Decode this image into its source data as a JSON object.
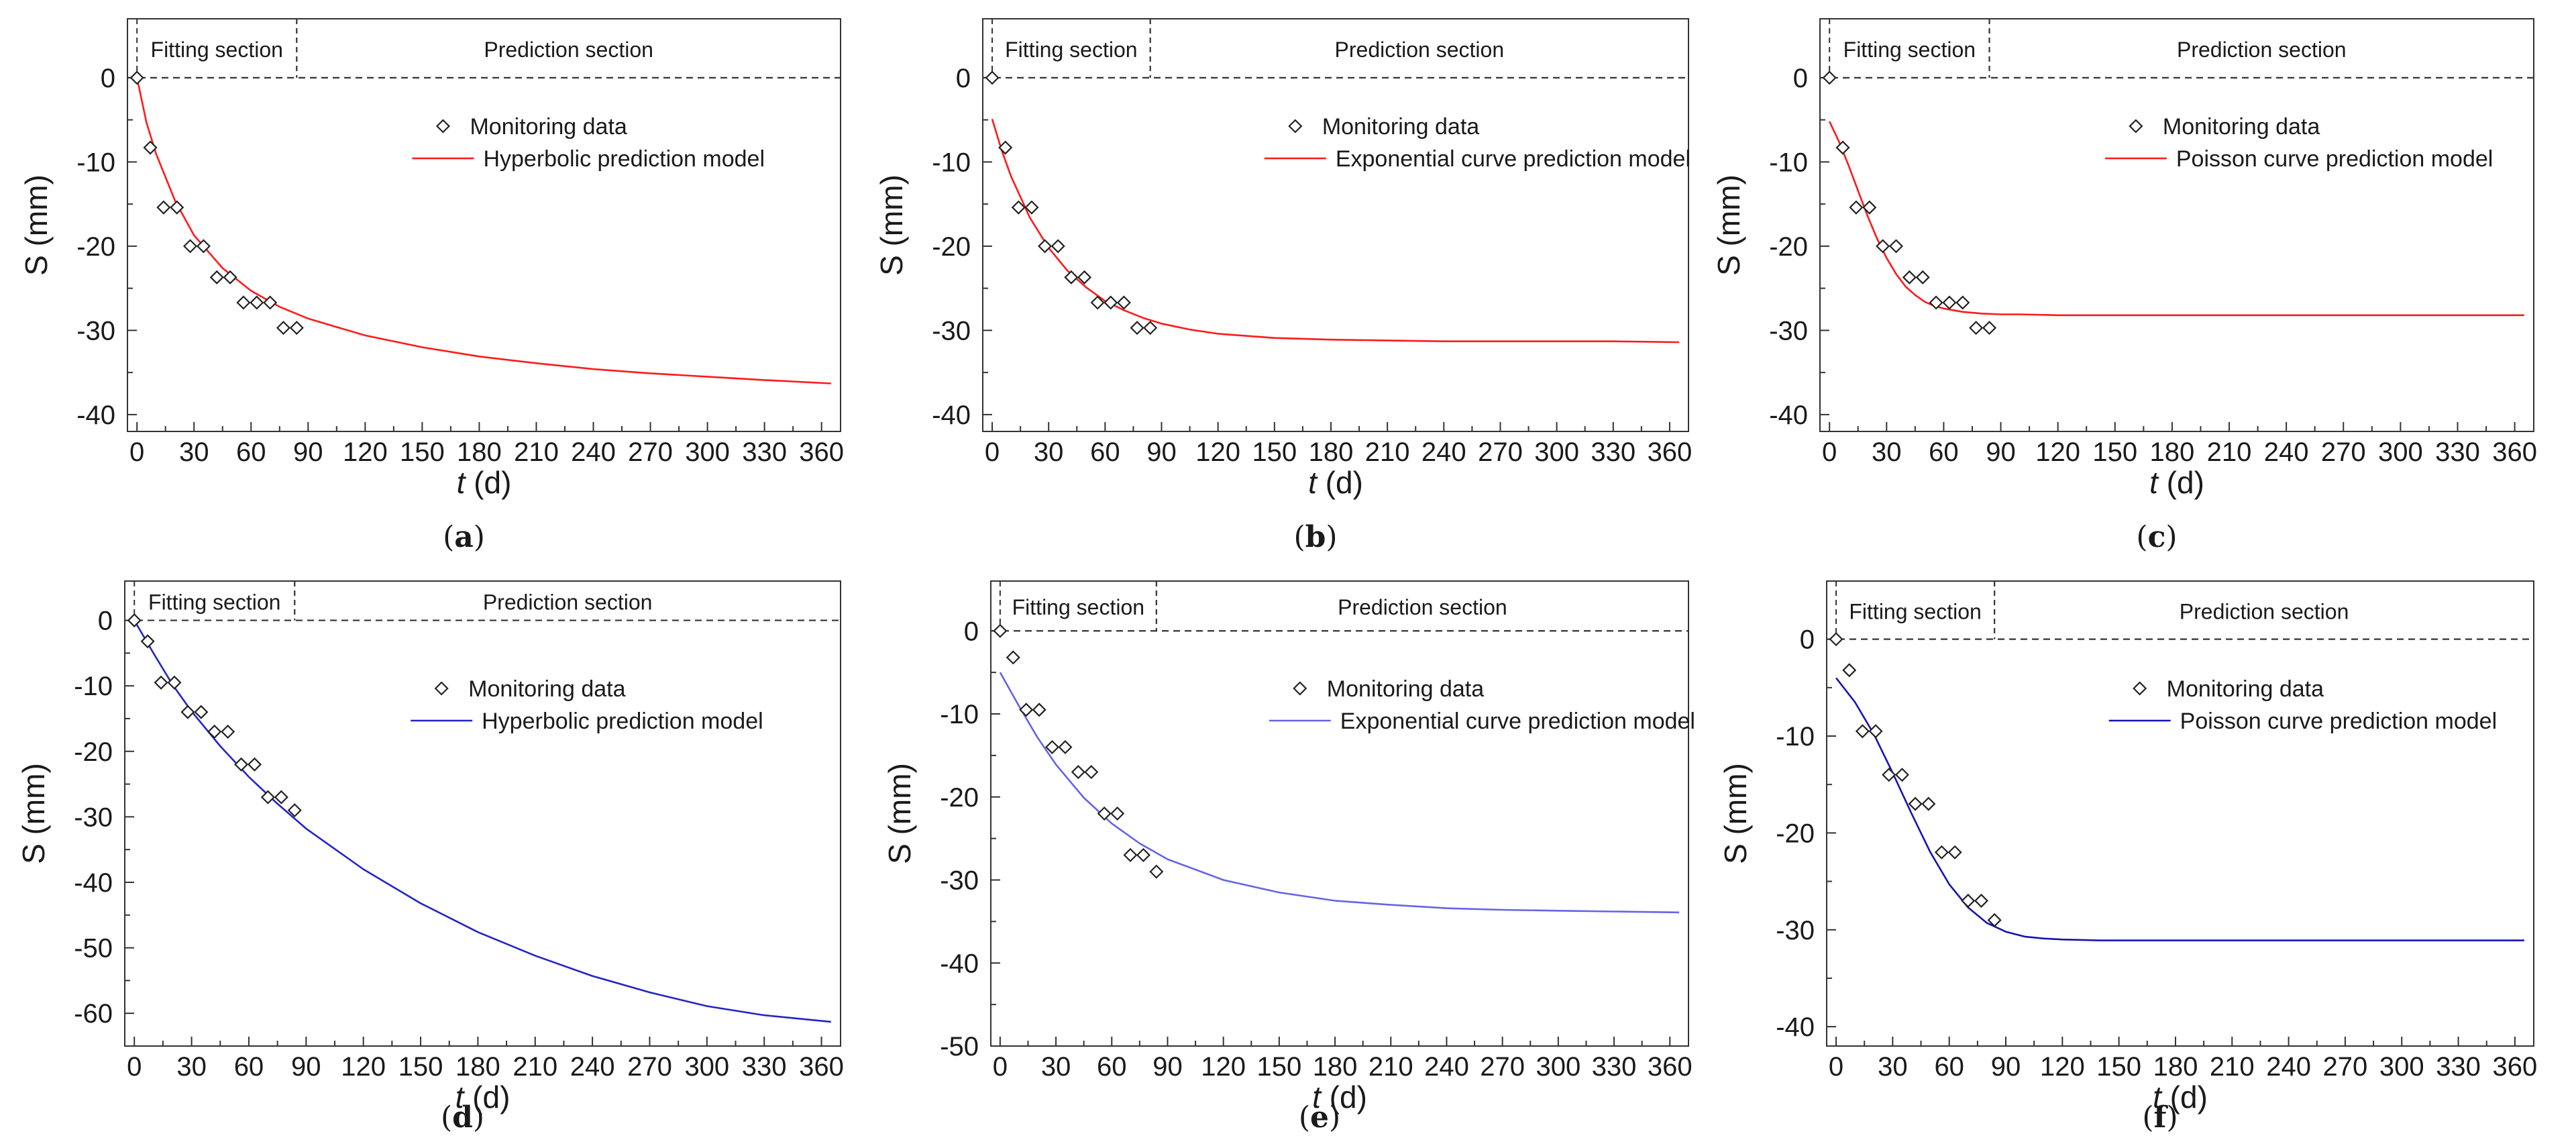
{
  "chart_data": [
    {
      "id": "a",
      "type": "line",
      "caption_letter": "a",
      "xlabel_italic": "t",
      "xlabel_unit": " (d)",
      "ylabel": "S (mm)",
      "xlim": [
        -5,
        370
      ],
      "ylim": [
        -42,
        7
      ],
      "xticks": [
        0,
        30,
        60,
        90,
        120,
        150,
        180,
        210,
        240,
        270,
        300,
        330,
        360
      ],
      "yticks": [
        0,
        -10,
        -20,
        -30,
        -40
      ],
      "fit_end": 84,
      "section_labels": {
        "fitting": "Fitting section",
        "prediction": "Prediction section"
      },
      "legend": {
        "scatter": "Monitoring data",
        "line": "Hyperbolic prediction model"
      },
      "line_color": "#ff1a1a",
      "series": [
        {
          "name": "Monitoring data",
          "kind": "scatter",
          "x": [
            0,
            7,
            14,
            21,
            28,
            35,
            42,
            49,
            56,
            63,
            70,
            77,
            84
          ],
          "y": [
            0,
            -8.3,
            -15.4,
            -15.4,
            -20,
            -20,
            -23.7,
            -23.7,
            -26.7,
            -26.7,
            -26.7,
            -29.7,
            -29.7
          ]
        },
        {
          "name": "Hyperbolic prediction model",
          "kind": "line",
          "x": [
            0,
            5,
            10,
            20,
            30,
            45,
            60,
            75,
            90,
            120,
            150,
            180,
            210,
            240,
            270,
            300,
            330,
            365
          ],
          "y": [
            0,
            -5.3,
            -9.0,
            -14.6,
            -18.7,
            -22.6,
            -25.3,
            -27.2,
            -28.6,
            -30.6,
            -32.0,
            -33.1,
            -33.9,
            -34.6,
            -35.1,
            -35.5,
            -35.9,
            -36.3
          ]
        }
      ]
    },
    {
      "id": "b",
      "type": "line",
      "caption_letter": "b",
      "xlabel_italic": "t",
      "xlabel_unit": " (d)",
      "ylabel": "S (mm)",
      "xlim": [
        -5,
        370
      ],
      "ylim": [
        -42,
        7
      ],
      "xticks": [
        0,
        30,
        60,
        90,
        120,
        150,
        180,
        210,
        240,
        270,
        300,
        330,
        360
      ],
      "yticks": [
        0,
        -10,
        -20,
        -30,
        -40
      ],
      "fit_end": 84,
      "section_labels": {
        "fitting": "Fitting section",
        "prediction": "Prediction section"
      },
      "legend": {
        "scatter": "Monitoring data",
        "line": "Exponential curve prediction model"
      },
      "line_color": "#ff1a1a",
      "series": [
        {
          "name": "Monitoring data",
          "kind": "scatter",
          "x": [
            0,
            7,
            14,
            21,
            28,
            35,
            42,
            49,
            56,
            63,
            70,
            77,
            84
          ],
          "y": [
            0,
            -8.3,
            -15.4,
            -15.4,
            -20,
            -20,
            -23.7,
            -23.7,
            -26.7,
            -26.7,
            -26.7,
            -29.7,
            -29.7
          ]
        },
        {
          "name": "Exponential curve prediction model",
          "kind": "line",
          "x": [
            0,
            5,
            10,
            20,
            30,
            40,
            50,
            60,
            70,
            80,
            90,
            105,
            120,
            150,
            180,
            210,
            240,
            270,
            300,
            330,
            365
          ],
          "y": [
            -4.9,
            -8.6,
            -11.7,
            -16.6,
            -20.2,
            -22.9,
            -24.9,
            -26.5,
            -27.6,
            -28.5,
            -29.2,
            -29.9,
            -30.4,
            -30.9,
            -31.1,
            -31.2,
            -31.3,
            -31.3,
            -31.3,
            -31.3,
            -31.4
          ]
        }
      ]
    },
    {
      "id": "c",
      "type": "line",
      "caption_letter": "c",
      "xlabel_italic": "t",
      "xlabel_unit": " (d)",
      "ylabel": "S (mm)",
      "xlim": [
        -5,
        370
      ],
      "ylim": [
        -42,
        7
      ],
      "xticks": [
        0,
        30,
        60,
        90,
        120,
        150,
        180,
        210,
        240,
        270,
        300,
        330,
        360
      ],
      "yticks": [
        0,
        -10,
        -20,
        -30,
        -40
      ],
      "fit_end": 84,
      "section_labels": {
        "fitting": "Fitting section",
        "prediction": "Prediction section"
      },
      "legend": {
        "scatter": "Monitoring data",
        "line": "Poisson curve prediction model"
      },
      "line_color": "#ff1a1a",
      "series": [
        {
          "name": "Monitoring data",
          "kind": "scatter",
          "x": [
            0,
            7,
            14,
            21,
            28,
            35,
            42,
            49,
            56,
            63,
            70,
            77,
            84
          ],
          "y": [
            0,
            -8.3,
            -15.4,
            -15.4,
            -20,
            -20,
            -23.7,
            -23.7,
            -26.7,
            -26.7,
            -26.7,
            -29.7,
            -29.7
          ]
        },
        {
          "name": "Poisson curve prediction model",
          "kind": "line",
          "x": [
            0,
            5,
            10,
            15,
            20,
            25,
            30,
            35,
            40,
            45,
            50,
            55,
            60,
            70,
            80,
            90,
            100,
            120,
            150,
            200,
            250,
            300,
            365
          ],
          "y": [
            -5.2,
            -7.6,
            -10.4,
            -13.4,
            -16.4,
            -19.1,
            -21.4,
            -23.3,
            -24.8,
            -25.8,
            -26.6,
            -27.1,
            -27.4,
            -27.8,
            -28.0,
            -28.1,
            -28.1,
            -28.2,
            -28.2,
            -28.2,
            -28.2,
            -28.2,
            -28.2
          ]
        }
      ]
    },
    {
      "id": "d",
      "type": "line",
      "caption_letter": "d",
      "xlabel_italic": "t",
      "xlabel_unit": " (d)",
      "ylabel": "S (mm)",
      "xlim": [
        -5,
        370
      ],
      "ylim": [
        -65,
        6
      ],
      "xticks": [
        0,
        30,
        60,
        90,
        120,
        150,
        180,
        210,
        240,
        270,
        300,
        330,
        360
      ],
      "yticks": [
        0,
        -10,
        -20,
        -30,
        -40,
        -50,
        -60
      ],
      "fit_end": 84,
      "section_labels": {
        "fitting": "Fitting section",
        "prediction": "Prediction section"
      },
      "legend": {
        "scatter": "Monitoring data",
        "line": "Hyperbolic prediction model"
      },
      "line_color": "#2323c8",
      "series": [
        {
          "name": "Monitoring data",
          "kind": "scatter",
          "x": [
            0,
            7,
            14,
            21,
            28,
            35,
            42,
            49,
            56,
            63,
            70,
            77,
            84
          ],
          "y": [
            0,
            -3.2,
            -9.5,
            -9.5,
            -14,
            -14,
            -17,
            -17,
            -22,
            -22,
            -27,
            -27,
            -29
          ]
        },
        {
          "name": "Hyperbolic prediction model",
          "kind": "line",
          "x": [
            0,
            10,
            20,
            30,
            45,
            60,
            75,
            90,
            120,
            150,
            180,
            210,
            240,
            270,
            300,
            330,
            365
          ],
          "y": [
            0,
            -5.0,
            -9.8,
            -13.9,
            -19.2,
            -23.9,
            -28.0,
            -31.8,
            -38.0,
            -43.2,
            -47.6,
            -51.2,
            -54.3,
            -56.8,
            -58.9,
            -60.3,
            -61.3
          ]
        }
      ]
    },
    {
      "id": "e",
      "type": "line",
      "caption_letter": "e",
      "xlabel_italic": "t",
      "xlabel_unit": " (d)",
      "ylabel": "S (mm)",
      "xlim": [
        -5,
        370
      ],
      "ylim": [
        -50,
        6
      ],
      "xticks": [
        0,
        30,
        60,
        90,
        120,
        150,
        180,
        210,
        240,
        270,
        300,
        330,
        360
      ],
      "yticks": [
        0,
        -10,
        -20,
        -30,
        -40,
        -50
      ],
      "fit_end": 84,
      "section_labels": {
        "fitting": "Fitting section",
        "prediction": "Prediction section"
      },
      "legend": {
        "scatter": "Monitoring data",
        "line": "Exponential curve prediction model"
      },
      "line_color": "#6464e6",
      "series": [
        {
          "name": "Monitoring data",
          "kind": "scatter",
          "x": [
            0,
            7,
            14,
            21,
            28,
            35,
            42,
            49,
            56,
            63,
            70,
            77,
            84
          ],
          "y": [
            0,
            -3.2,
            -9.5,
            -9.5,
            -14,
            -14,
            -17,
            -17,
            -22,
            -22,
            -27,
            -27,
            -29
          ]
        },
        {
          "name": "Exponential curve prediction model",
          "kind": "line",
          "x": [
            0,
            10,
            20,
            30,
            45,
            60,
            75,
            90,
            120,
            150,
            180,
            210,
            240,
            270,
            300,
            330,
            365
          ],
          "y": [
            -5.0,
            -9.0,
            -12.8,
            -16.1,
            -20.1,
            -23.2,
            -25.6,
            -27.5,
            -30.0,
            -31.5,
            -32.5,
            -33.0,
            -33.4,
            -33.6,
            -33.7,
            -33.8,
            -33.9
          ]
        }
      ]
    },
    {
      "id": "f",
      "type": "line",
      "caption_letter": "f",
      "xlabel_italic": "t",
      "xlabel_unit": " (d)",
      "ylabel": "S (mm)",
      "xlim": [
        -5,
        370
      ],
      "ylim": [
        -42,
        6
      ],
      "xticks": [
        0,
        30,
        60,
        90,
        120,
        150,
        180,
        210,
        240,
        270,
        300,
        330,
        360
      ],
      "yticks": [
        0,
        -10,
        -20,
        -30,
        -40
      ],
      "fit_end": 84,
      "section_labels": {
        "fitting": "Fitting section",
        "prediction": "Prediction section"
      },
      "legend": {
        "scatter": "Monitoring data",
        "line": "Poisson curve prediction model"
      },
      "line_color": "#1414b4",
      "series": [
        {
          "name": "Monitoring data",
          "kind": "scatter",
          "x": [
            0,
            7,
            14,
            21,
            28,
            35,
            42,
            49,
            56,
            63,
            70,
            77,
            84
          ],
          "y": [
            0,
            -3.2,
            -9.5,
            -9.5,
            -14,
            -14,
            -17,
            -17,
            -22,
            -22,
            -27,
            -27,
            -29
          ]
        },
        {
          "name": "Poisson curve prediction model",
          "kind": "line",
          "x": [
            0,
            10,
            20,
            30,
            40,
            50,
            60,
            70,
            80,
            90,
            100,
            110,
            120,
            140,
            160,
            200,
            250,
            300,
            365
          ],
          "y": [
            -4.0,
            -6.5,
            -9.8,
            -13.8,
            -18.0,
            -22.0,
            -25.3,
            -27.7,
            -29.3,
            -30.2,
            -30.7,
            -30.9,
            -31.0,
            -31.1,
            -31.1,
            -31.1,
            -31.1,
            -31.1,
            -31.1
          ]
        }
      ]
    }
  ]
}
